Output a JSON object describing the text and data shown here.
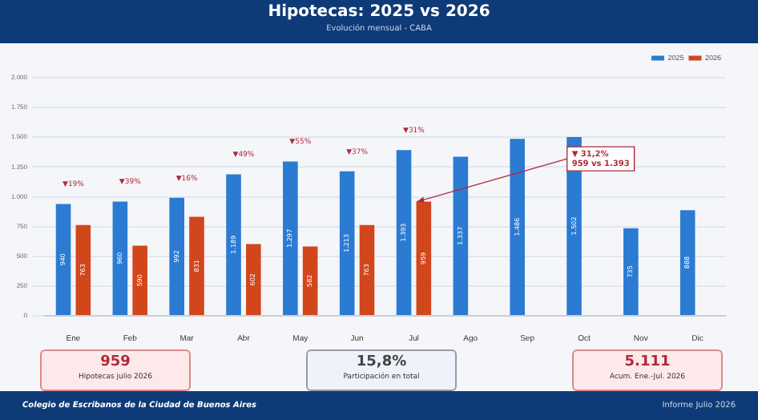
{
  "chart_data": {
    "type": "bar",
    "title": "Hipotecas: 2025 vs 2026",
    "subtitle": "Evolución mensual - CABA",
    "categories": [
      "Ene",
      "Feb",
      "Mar",
      "Abr",
      "May",
      "Jun",
      "Jul",
      "Ago",
      "Sep",
      "Oct",
      "Nov",
      "Dic"
    ],
    "series": [
      {
        "name": "2025",
        "color": "#2b7bd3",
        "values": [
          940,
          960,
          992,
          1189,
          1297,
          1213,
          1393,
          1337,
          1486,
          1502,
          735,
          888
        ],
        "value_labels": [
          "940",
          "960",
          "992",
          "1.189",
          "1.297",
          "1.213",
          "1.393",
          "1.337",
          "1.486",
          "1.502",
          "735",
          "888"
        ]
      },
      {
        "name": "2026",
        "color": "#d2461c",
        "values": [
          763,
          590,
          831,
          602,
          582,
          763,
          959,
          null,
          null,
          null,
          null,
          null
        ],
        "value_labels": [
          "763",
          "590",
          "831",
          "602",
          "582",
          "763",
          "959",
          null,
          null,
          null,
          null,
          null
        ]
      }
    ],
    "ylim": [
      0,
      2000
    ],
    "yticks": [
      {
        "value": 0,
        "label": "0"
      },
      {
        "value": 250,
        "label": "250"
      },
      {
        "value": 500,
        "label": "500"
      },
      {
        "value": 750,
        "label": "750"
      },
      {
        "value": 1000,
        "label": "1.000"
      },
      {
        "value": 1250,
        "label": "1.250"
      },
      {
        "value": 1500,
        "label": "1.500"
      },
      {
        "value": 1750,
        "label": "1.750"
      },
      {
        "value": 2000,
        "label": "2.000"
      }
    ],
    "grid": "y",
    "legend": "top right",
    "annotations": [
      {
        "text": "▼19%",
        "x": "Ene",
        "y": 940
      },
      {
        "text": "▼39%",
        "x": "Feb",
        "y": 960
      },
      {
        "text": "▼16%",
        "x": "Mar",
        "y": 992
      },
      {
        "text": "▼49%",
        "x": "Abr",
        "y": 1189
      },
      {
        "text": "▼55%",
        "x": "May",
        "y": 1297
      },
      {
        "text": "▼37%",
        "x": "Jun",
        "y": 1213
      },
      {
        "text": "▼31%",
        "x": "Jul",
        "y": 1393
      },
      {
        "text": "▼ 31,2%\n959 vs 1.393",
        "x": "Jul",
        "y": 959
      },
      "959",
      "Hipotecas julio 2026",
      "15,8%",
      "Participación en total",
      "5.111",
      "Acum. Ene.-Jul. 2026",
      "Colegio de Escribanos de la Ciudad de Buenos Aires",
      "Informe Julio 2026"
    ]
  }
}
